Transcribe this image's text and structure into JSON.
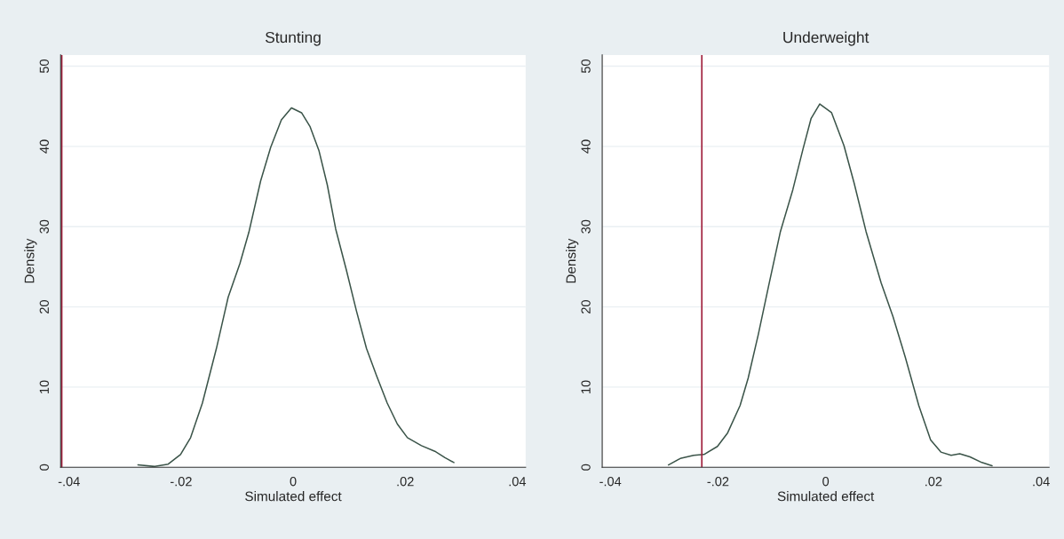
{
  "chart_data": [
    {
      "type": "line",
      "title": "Stunting",
      "xlabel": "Simulated effect",
      "ylabel": "Density",
      "series": [
        {
          "color": "#3b5449",
          "x": [
            -0.0277,
            -0.0247,
            -0.0223,
            -0.0201,
            -0.0183,
            -0.0162,
            -0.0137,
            -0.0116,
            -0.0095,
            -0.0079,
            -0.0058,
            -0.004,
            -0.0021,
            -0.0003,
            0.0015,
            0.003,
            0.0046,
            0.0061,
            0.0076,
            0.0095,
            0.0113,
            0.0131,
            0.0149,
            0.0168,
            0.0186,
            0.0204,
            0.0229,
            0.0253,
            0.0271,
            0.0287
          ],
          "values": [
            0.3,
            0.1,
            0.4,
            1.6,
            3.7,
            8.0,
            14.8,
            21.2,
            25.4,
            29.3,
            35.7,
            39.9,
            43.3,
            44.8,
            44.2,
            42.5,
            39.5,
            35.2,
            29.7,
            24.6,
            19.5,
            14.8,
            11.4,
            8.0,
            5.4,
            3.7,
            2.7,
            2.0,
            1.2,
            0.6
          ]
        }
      ],
      "ref_lines": [
        {
          "axis": "x",
          "value": -0.0413,
          "color": "#a0203c"
        }
      ],
      "xlim": [
        -0.0415,
        0.0415
      ],
      "ylim": [
        0,
        51.4
      ],
      "xticks": [
        {
          "value": -0.04,
          "label": "-.04"
        },
        {
          "value": -0.02,
          "label": "-.02"
        },
        0,
        {
          "value": 0.02,
          "label": ".02"
        },
        {
          "value": 0.04,
          "label": ".04"
        }
      ],
      "yticks": [
        0,
        10,
        20,
        30,
        40,
        50
      ],
      "grid": "y",
      "marker": "none",
      "line_style": "solid",
      "legend": false
    },
    {
      "type": "line",
      "title": "Underweight",
      "xlabel": "Simulated effect",
      "ylabel": "Density",
      "series": [
        {
          "color": "#3b5449",
          "x": [
            -0.0292,
            -0.027,
            -0.0245,
            -0.0226,
            -0.0201,
            -0.0182,
            -0.0159,
            -0.0144,
            -0.0125,
            -0.0106,
            -0.0084,
            -0.0061,
            -0.0042,
            -0.0027,
            -0.0011,
            0.0011,
            0.0034,
            0.0053,
            0.0075,
            0.0103,
            0.0125,
            0.0148,
            0.0173,
            0.0195,
            0.0214,
            0.0233,
            0.0249,
            0.0268,
            0.029,
            0.0309
          ],
          "values": [
            0.3,
            1.1,
            1.5,
            1.6,
            2.6,
            4.3,
            7.7,
            11.1,
            16.6,
            22.6,
            29.4,
            34.6,
            39.7,
            43.5,
            45.3,
            44.2,
            40.1,
            35.4,
            29.4,
            23.0,
            18.8,
            13.7,
            7.7,
            3.4,
            1.9,
            1.5,
            1.7,
            1.3,
            0.6,
            0.2
          ]
        }
      ],
      "ref_lines": [
        {
          "axis": "x",
          "value": -0.023,
          "color": "#a0203c"
        }
      ],
      "xlim": [
        -0.0415,
        0.0415
      ],
      "ylim": [
        0,
        51.4
      ],
      "xticks": [
        {
          "value": -0.04,
          "label": "-.04"
        },
        {
          "value": -0.02,
          "label": "-.02"
        },
        0,
        {
          "value": 0.02,
          "label": ".02"
        },
        {
          "value": 0.04,
          "label": ".04"
        }
      ],
      "yticks": [
        0,
        10,
        20,
        30,
        40,
        50
      ],
      "grid": "y",
      "marker": "none",
      "line_style": "solid",
      "legend": false
    }
  ]
}
